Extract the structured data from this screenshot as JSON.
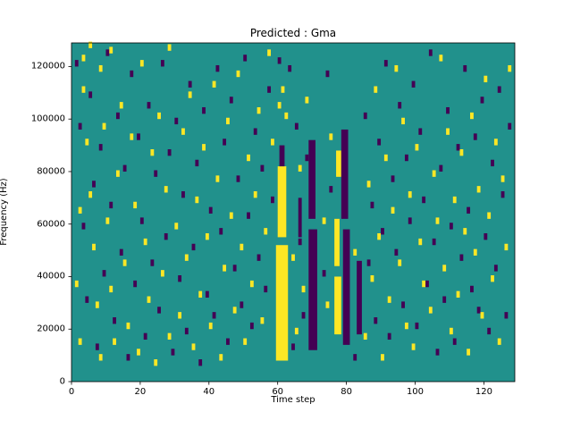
{
  "chart_data": {
    "type": "heatmap",
    "title": "Predicted : Gma",
    "xlabel": "Time step",
    "ylabel": "Frequency (Hz)",
    "xlim": [
      0,
      129
    ],
    "ylim": [
      0,
      129000
    ],
    "x_ticks": [
      0,
      20,
      40,
      60,
      80,
      100,
      120
    ],
    "y_ticks": [
      0,
      20000,
      40000,
      60000,
      80000,
      100000,
      120000
    ],
    "grid": false,
    "legend": "none",
    "colors": {
      "background": "#21918c",
      "high": "#fde725",
      "low": "#440154",
      "axis": "#000000",
      "figure_background": "#ffffff"
    },
    "cell": {
      "width_steps": 1,
      "height_hz": 2500
    },
    "bands": [
      {
        "color": "high",
        "x0": 59.5,
        "x1": 63,
        "y0": 8000,
        "y1": 52000
      },
      {
        "color": "high",
        "x0": 60,
        "x1": 62.5,
        "y0": 55000,
        "y1": 82000
      },
      {
        "color": "low",
        "x0": 60.5,
        "x1": 62,
        "y0": 82000,
        "y1": 90000
      },
      {
        "color": "low",
        "x0": 66,
        "x1": 67,
        "y0": 55000,
        "y1": 70000
      },
      {
        "color": "low",
        "x0": 69,
        "x1": 71.5,
        "y0": 12000,
        "y1": 58000
      },
      {
        "color": "low",
        "x0": 69,
        "x1": 71,
        "y0": 62000,
        "y1": 92000
      },
      {
        "color": "high",
        "x0": 76.5,
        "x1": 78.5,
        "y0": 18000,
        "y1": 40000
      },
      {
        "color": "high",
        "x0": 76.5,
        "x1": 78,
        "y0": 44000,
        "y1": 62000
      },
      {
        "color": "high",
        "x0": 77,
        "x1": 78.5,
        "y0": 78000,
        "y1": 88000
      },
      {
        "color": "low",
        "x0": 79,
        "x1": 81,
        "y0": 14000,
        "y1": 58000
      },
      {
        "color": "low",
        "x0": 78.5,
        "x1": 80.5,
        "y0": 62000,
        "y1": 96000
      },
      {
        "color": "low",
        "x0": 83,
        "x1": 84.5,
        "y0": 18000,
        "y1": 46000
      }
    ],
    "cells_high": [
      [
        1,
        36000
      ],
      [
        2,
        64000
      ],
      [
        2,
        14000
      ],
      [
        3,
        110000
      ],
      [
        3,
        122000
      ],
      [
        4,
        90000
      ],
      [
        5,
        127000
      ],
      [
        5,
        70000
      ],
      [
        6,
        50000
      ],
      [
        7,
        28000
      ],
      [
        8,
        118000
      ],
      [
        8,
        8000
      ],
      [
        9,
        96000
      ],
      [
        10,
        60000
      ],
      [
        11,
        34000
      ],
      [
        11,
        125000
      ],
      [
        12,
        14000
      ],
      [
        13,
        78000
      ],
      [
        14,
        104000
      ],
      [
        15,
        44000
      ],
      [
        16,
        20000
      ],
      [
        17,
        92000
      ],
      [
        18,
        66000
      ],
      [
        19,
        10000
      ],
      [
        20,
        120000
      ],
      [
        21,
        52000
      ],
      [
        22,
        30000
      ],
      [
        23,
        86000
      ],
      [
        24,
        6000
      ],
      [
        25,
        100000
      ],
      [
        26,
        40000
      ],
      [
        27,
        72000
      ],
      [
        28,
        16000
      ],
      [
        28,
        126000
      ],
      [
        30,
        58000
      ],
      [
        31,
        24000
      ],
      [
        32,
        94000
      ],
      [
        33,
        46000
      ],
      [
        34,
        108000
      ],
      [
        35,
        12000
      ],
      [
        36,
        68000
      ],
      [
        37,
        32000
      ],
      [
        38,
        88000
      ],
      [
        39,
        54000
      ],
      [
        40,
        20000
      ],
      [
        41,
        112000
      ],
      [
        42,
        76000
      ],
      [
        43,
        8000
      ],
      [
        44,
        42000
      ],
      [
        45,
        98000
      ],
      [
        46,
        62000
      ],
      [
        47,
        26000
      ],
      [
        48,
        116000
      ],
      [
        49,
        50000
      ],
      [
        50,
        14000
      ],
      [
        51,
        84000
      ],
      [
        52,
        36000
      ],
      [
        53,
        70000
      ],
      [
        54,
        102000
      ],
      [
        55,
        22000
      ],
      [
        56,
        56000
      ],
      [
        57,
        124000
      ],
      [
        58,
        90000
      ],
      [
        60,
        104000
      ],
      [
        61,
        110000
      ],
      [
        62,
        100000
      ],
      [
        64,
        46000
      ],
      [
        65,
        18000
      ],
      [
        66,
        80000
      ],
      [
        67,
        34000
      ],
      [
        68,
        106000
      ],
      [
        73,
        60000
      ],
      [
        74,
        28000
      ],
      [
        75,
        92000
      ],
      [
        82,
        48000
      ],
      [
        85,
        16000
      ],
      [
        86,
        74000
      ],
      [
        87,
        38000
      ],
      [
        88,
        110000
      ],
      [
        89,
        54000
      ],
      [
        90,
        8000
      ],
      [
        91,
        84000
      ],
      [
        92,
        30000
      ],
      [
        93,
        64000
      ],
      [
        94,
        118000
      ],
      [
        95,
        44000
      ],
      [
        96,
        98000
      ],
      [
        97,
        20000
      ],
      [
        98,
        70000
      ],
      [
        99,
        12000
      ],
      [
        100,
        88000
      ],
      [
        101,
        52000
      ],
      [
        102,
        36000
      ],
      [
        104,
        26000
      ],
      [
        105,
        78000
      ],
      [
        106,
        60000
      ],
      [
        107,
        122000
      ],
      [
        108,
        42000
      ],
      [
        109,
        94000
      ],
      [
        110,
        18000
      ],
      [
        111,
        68000
      ],
      [
        112,
        32000
      ],
      [
        113,
        86000
      ],
      [
        114,
        56000
      ],
      [
        115,
        10000
      ],
      [
        116,
        100000
      ],
      [
        117,
        48000
      ],
      [
        118,
        72000
      ],
      [
        119,
        24000
      ],
      [
        120,
        114000
      ],
      [
        121,
        62000
      ],
      [
        122,
        38000
      ],
      [
        123,
        90000
      ],
      [
        124,
        14000
      ],
      [
        125,
        76000
      ],
      [
        126,
        50000
      ],
      [
        127,
        118000
      ]
    ],
    "cells_low": [
      [
        1,
        120000
      ],
      [
        2,
        96000
      ],
      [
        3,
        58000
      ],
      [
        4,
        30000
      ],
      [
        5,
        108000
      ],
      [
        6,
        74000
      ],
      [
        7,
        12000
      ],
      [
        8,
        88000
      ],
      [
        9,
        40000
      ],
      [
        10,
        124000
      ],
      [
        11,
        66000
      ],
      [
        12,
        22000
      ],
      [
        13,
        100000
      ],
      [
        14,
        48000
      ],
      [
        15,
        80000
      ],
      [
        16,
        8000
      ],
      [
        17,
        116000
      ],
      [
        18,
        36000
      ],
      [
        19,
        92000
      ],
      [
        20,
        60000
      ],
      [
        21,
        16000
      ],
      [
        22,
        104000
      ],
      [
        23,
        44000
      ],
      [
        24,
        78000
      ],
      [
        25,
        26000
      ],
      [
        26,
        120000
      ],
      [
        27,
        54000
      ],
      [
        28,
        86000
      ],
      [
        29,
        10000
      ],
      [
        30,
        98000
      ],
      [
        31,
        38000
      ],
      [
        32,
        70000
      ],
      [
        33,
        18000
      ],
      [
        34,
        112000
      ],
      [
        35,
        50000
      ],
      [
        36,
        82000
      ],
      [
        37,
        6000
      ],
      [
        38,
        102000
      ],
      [
        39,
        32000
      ],
      [
        40,
        64000
      ],
      [
        41,
        24000
      ],
      [
        42,
        118000
      ],
      [
        43,
        56000
      ],
      [
        44,
        90000
      ],
      [
        45,
        14000
      ],
      [
        46,
        106000
      ],
      [
        47,
        42000
      ],
      [
        48,
        76000
      ],
      [
        49,
        28000
      ],
      [
        50,
        122000
      ],
      [
        51,
        62000
      ],
      [
        52,
        20000
      ],
      [
        53,
        94000
      ],
      [
        54,
        46000
      ],
      [
        55,
        80000
      ],
      [
        56,
        34000
      ],
      [
        57,
        110000
      ],
      [
        58,
        68000
      ],
      [
        60,
        121000
      ],
      [
        63,
        118000
      ],
      [
        64,
        12000
      ],
      [
        65,
        96000
      ],
      [
        66,
        52000
      ],
      [
        67,
        24000
      ],
      [
        68,
        84000
      ],
      [
        73,
        40000
      ],
      [
        74,
        116000
      ],
      [
        75,
        72000
      ],
      [
        82,
        8000
      ],
      [
        85,
        100000
      ],
      [
        86,
        44000
      ],
      [
        87,
        66000
      ],
      [
        88,
        22000
      ],
      [
        89,
        90000
      ],
      [
        90,
        56000
      ],
      [
        91,
        120000
      ],
      [
        92,
        16000
      ],
      [
        93,
        76000
      ],
      [
        94,
        48000
      ],
      [
        95,
        104000
      ],
      [
        96,
        28000
      ],
      [
        97,
        84000
      ],
      [
        98,
        60000
      ],
      [
        99,
        112000
      ],
      [
        100,
        20000
      ],
      [
        101,
        94000
      ],
      [
        102,
        68000
      ],
      [
        103,
        36000
      ],
      [
        104,
        124000
      ],
      [
        105,
        52000
      ],
      [
        106,
        10000
      ],
      [
        107,
        80000
      ],
      [
        108,
        30000
      ],
      [
        109,
        102000
      ],
      [
        110,
        58000
      ],
      [
        111,
        14000
      ],
      [
        112,
        88000
      ],
      [
        113,
        46000
      ],
      [
        114,
        118000
      ],
      [
        115,
        64000
      ],
      [
        116,
        34000
      ],
      [
        117,
        92000
      ],
      [
        118,
        26000
      ],
      [
        119,
        106000
      ],
      [
        120,
        54000
      ],
      [
        121,
        18000
      ],
      [
        122,
        82000
      ],
      [
        123,
        42000
      ],
      [
        124,
        110000
      ],
      [
        125,
        70000
      ],
      [
        126,
        24000
      ],
      [
        127,
        96000
      ]
    ]
  }
}
